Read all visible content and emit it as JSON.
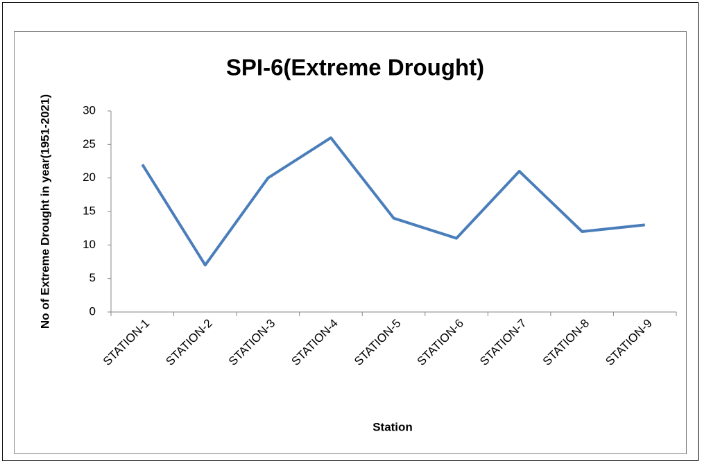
{
  "chart_data": {
    "type": "line",
    "title": "SPI-6(Extreme Drought)",
    "x_label": "Station",
    "y_label": "No of Extreme Drought in year(1951-2021)",
    "categories": [
      "STATION-1",
      "STATION-2",
      "STATION-3",
      "STATION-4",
      "STATION-5",
      "STATION-6",
      "STATION-7",
      "STATION-8",
      "STATION-9"
    ],
    "values": [
      22,
      7,
      20,
      26,
      14,
      11,
      21,
      12,
      13
    ],
    "color": "#4a7ebb",
    "ylim": [
      0,
      30
    ],
    "yticks": [
      0,
      5,
      10,
      15,
      20,
      25,
      30
    ],
    "grid": false
  }
}
